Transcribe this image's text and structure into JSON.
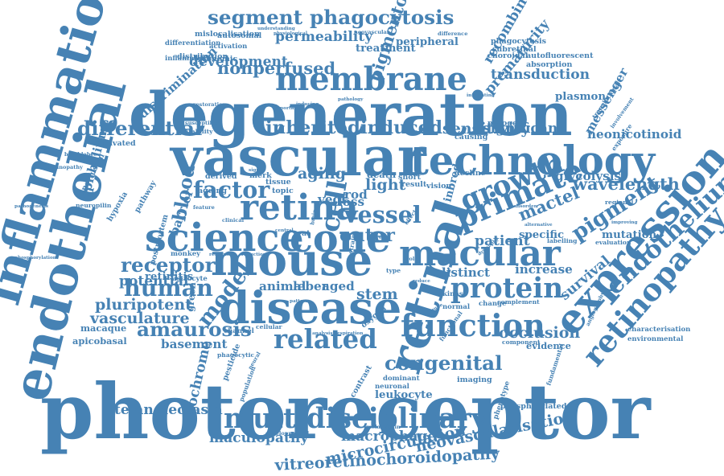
{
  "cloud": {
    "color": "#4682b4",
    "words": [
      {
        "text": "photoreceptor",
        "weight": 100
      },
      {
        "text": "degeneration",
        "weight": 78
      },
      {
        "text": "vascular",
        "weight": 70
      },
      {
        "text": "endothelial",
        "weight": 68
      },
      {
        "text": "inflammation",
        "weight": 62
      },
      {
        "text": "retinal",
        "weight": 62
      },
      {
        "text": "mouse",
        "weight": 58
      },
      {
        "text": "disease",
        "weight": 58
      },
      {
        "text": "technology",
        "weight": 52
      },
      {
        "text": "expression",
        "weight": 52
      },
      {
        "text": "science",
        "weight": 50
      },
      {
        "text": "cone",
        "weight": 50
      },
      {
        "text": "retina",
        "weight": 46
      },
      {
        "text": "macular",
        "weight": 46
      },
      {
        "text": "membrane",
        "weight": 42
      },
      {
        "text": "primate",
        "weight": 40
      },
      {
        "text": "function",
        "weight": 40
      },
      {
        "text": "retinopathy",
        "weight": 40
      },
      {
        "text": "multidisciplinary",
        "weight": 36
      },
      {
        "text": "protein",
        "weight": 36
      },
      {
        "text": "growth",
        "weight": 36
      },
      {
        "text": "cell",
        "weight": 34
      },
      {
        "text": "related",
        "weight": 34
      },
      {
        "text": "endothelium",
        "weight": 32
      },
      {
        "text": "vessel",
        "weight": 30
      },
      {
        "text": "human",
        "weight": 30
      },
      {
        "text": "factor",
        "weight": 30
      },
      {
        "text": "model",
        "weight": 28
      },
      {
        "text": "pigment",
        "weight": 28
      },
      {
        "text": "congenital",
        "weight": 26
      },
      {
        "text": "receptor",
        "weight": 26
      },
      {
        "text": "differential",
        "weight": 26
      },
      {
        "text": "amaurosis",
        "weight": 26
      },
      {
        "text": "segment",
        "weight": 26
      },
      {
        "text": "phagocytosis",
        "weight": 26
      },
      {
        "text": "inherited",
        "weight": 24
      },
      {
        "text": "induced",
        "weight": 24
      },
      {
        "text": "outer",
        "weight": 24
      },
      {
        "text": "blood",
        "weight": 24
      },
      {
        "text": "wavelength",
        "weight": 22
      },
      {
        "text": "nonperfused",
        "weight": 22
      },
      {
        "text": "pigmentosa",
        "weight": 22
      },
      {
        "text": "mactel",
        "weight": 22
      },
      {
        "text": "aging",
        "weight": 20
      },
      {
        "text": "light",
        "weight": 20
      },
      {
        "text": "sensitivity",
        "weight": 20
      },
      {
        "text": "stem",
        "weight": 20
      },
      {
        "text": "occlusion",
        "weight": 20
      },
      {
        "text": "pluripotent",
        "weight": 20
      },
      {
        "text": "vasculature",
        "weight": 20
      },
      {
        "text": "microcirculation",
        "weight": 20
      },
      {
        "text": "neovascularisation",
        "weight": 20
      },
      {
        "text": "vitreoretinochoroidopathy",
        "weight": 20
      },
      {
        "text": "macrophage",
        "weight": 18
      },
      {
        "text": "maculopathy",
        "weight": 18
      },
      {
        "text": "telangiectasia",
        "weight": 18
      },
      {
        "text": "cytochrome",
        "weight": 18
      },
      {
        "text": "potential",
        "weight": 18
      },
      {
        "text": "development",
        "weight": 18
      },
      {
        "text": "permeability",
        "weight": 18
      },
      {
        "text": "significant",
        "weight": 18
      },
      {
        "text": "prematurity",
        "weight": 18
      },
      {
        "text": "transduction",
        "weight": 18
      },
      {
        "text": "recombinase",
        "weight": 18
      },
      {
        "text": "patient",
        "weight": 18
      },
      {
        "text": "survival",
        "weight": 18
      },
      {
        "text": "glycolysis",
        "weight": 16
      },
      {
        "text": "neonicotinoid",
        "weight": 16
      },
      {
        "text": "messenger",
        "weight": 16
      },
      {
        "text": "distinct",
        "weight": 16
      },
      {
        "text": "increase",
        "weight": 16
      },
      {
        "text": "basement",
        "weight": 16
      },
      {
        "text": "barrier",
        "weight": 16
      },
      {
        "text": "epithelium",
        "weight": 16
      },
      {
        "text": "discrimination",
        "weight": 16
      },
      {
        "text": "leber",
        "weight": 16
      },
      {
        "text": "aged",
        "weight": 16
      },
      {
        "text": "animal",
        "weight": 16
      },
      {
        "text": "loss",
        "weight": 16
      },
      {
        "text": "rod",
        "weight": 16
      },
      {
        "text": "vegf",
        "weight": 16
      },
      {
        "text": "mutation",
        "weight": 14
      },
      {
        "text": "leukocyte",
        "weight": 14
      },
      {
        "text": "inbred",
        "weight": 14
      },
      {
        "text": "treatment",
        "weight": 14
      },
      {
        "text": "peripheral",
        "weight": 14
      },
      {
        "text": "plasmon",
        "weight": 14
      },
      {
        "text": "specific",
        "weight": 14
      },
      {
        "text": "retinitis",
        "weight": 14
      },
      {
        "text": "macaque",
        "weight": 12
      },
      {
        "text": "apicobasal",
        "weight": 12
      },
      {
        "text": "evidence",
        "weight": 12
      },
      {
        "text": "death",
        "weight": 12
      },
      {
        "text": "green",
        "weight": 12
      },
      {
        "text": "autofluorescent",
        "weight": 10
      },
      {
        "text": "phagocytosis",
        "weight": 10
      },
      {
        "text": "subretinal",
        "weight": 10
      },
      {
        "text": "choroidal",
        "weight": 10
      },
      {
        "text": "absorption",
        "weight": 10
      },
      {
        "text": "mitogen",
        "weight": 10
      },
      {
        "text": "causing",
        "weight": 10
      },
      {
        "text": "decline",
        "weight": 10
      },
      {
        "text": "short",
        "weight": 10
      },
      {
        "text": "result",
        "weight": 10
      },
      {
        "text": "vision",
        "weight": 10
      },
      {
        "text": "derived",
        "weight": 10
      },
      {
        "text": "ageing",
        "weight": 10
      },
      {
        "text": "topic",
        "weight": 10
      },
      {
        "text": "tissue",
        "weight": 10
      },
      {
        "text": "merk",
        "weight": 10
      },
      {
        "text": "distribution",
        "weight": 10
      },
      {
        "text": "ischemic",
        "weight": 10
      },
      {
        "text": "mislocalisation",
        "weight": 10
      },
      {
        "text": "autosomal",
        "weight": 10
      },
      {
        "text": "activation",
        "weight": 9
      },
      {
        "text": "inflammatory",
        "weight": 9
      },
      {
        "text": "differentiation",
        "weight": 9
      },
      {
        "text": "activated",
        "weight": 10
      },
      {
        "text": "perfusion",
        "weight": 10
      },
      {
        "text": "hypoxia",
        "weight": 10
      },
      {
        "text": "pathway",
        "weight": 10
      },
      {
        "text": "postmortem",
        "weight": 10
      },
      {
        "text": "monkey",
        "weight": 9
      },
      {
        "text": "astrocyte",
        "weight": 9
      },
      {
        "text": "channel",
        "weight": 9
      },
      {
        "text": "cellular",
        "weight": 8
      },
      {
        "text": "pesticide",
        "weight": 10
      },
      {
        "text": "phagocytic",
        "weight": 8
      },
      {
        "text": "contrast",
        "weight": 10
      },
      {
        "text": "oxygen",
        "weight": 10
      },
      {
        "text": "dominant",
        "weight": 9
      },
      {
        "text": "neuronal",
        "weight": 9
      },
      {
        "text": "imaging",
        "weight": 10
      },
      {
        "text": "phosphorylated",
        "weight": 10
      },
      {
        "text": "characterisation",
        "weight": 9
      },
      {
        "text": "environmental",
        "weight": 9
      },
      {
        "text": "complement",
        "weight": 8
      },
      {
        "text": "component",
        "weight": 8
      },
      {
        "text": "kinase",
        "weight": 9
      },
      {
        "text": "normal",
        "weight": 9
      },
      {
        "text": "change",
        "weight": 9
      },
      {
        "text": "regional",
        "weight": 8
      },
      {
        "text": "evaluation",
        "weight": 8
      },
      {
        "text": "labelling",
        "weight": 8
      },
      {
        "text": "stability",
        "weight": 8
      },
      {
        "text": "restoration",
        "weight": 7
      },
      {
        "text": "susceptible",
        "weight": 7
      },
      {
        "text": "retinopathy",
        "weight": 7
      },
      {
        "text": "bumblebee",
        "weight": 7
      },
      {
        "text": "neuropilin",
        "weight": 8
      },
      {
        "text": "pathogenesis",
        "weight": 6
      },
      {
        "text": "phosphorylation",
        "weight": 6
      },
      {
        "text": "developmental",
        "weight": 7
      },
      {
        "text": "melanopsin",
        "weight": 7
      },
      {
        "text": "fundamental",
        "weight": 8
      },
      {
        "text": "phenotype",
        "weight": 9
      },
      {
        "text": "translational",
        "weight": 8
      },
      {
        "text": "involvement",
        "weight": 7
      },
      {
        "text": "exposure",
        "weight": 8
      },
      {
        "text": "angiography",
        "weight": 7
      },
      {
        "text": "feature",
        "weight": 7
      },
      {
        "text": "clinical",
        "weight": 7
      },
      {
        "text": "understanding",
        "weight": 6
      },
      {
        "text": "physiological",
        "weight": 6
      },
      {
        "text": "neovascular",
        "weight": 7
      },
      {
        "text": "difference",
        "weight": 7
      },
      {
        "text": "reduce",
        "weight": 6
      },
      {
        "text": "rat",
        "weight": 10
      },
      {
        "text": "type",
        "weight": 8
      },
      {
        "text": "functional",
        "weight": 8
      },
      {
        "text": "pathology",
        "weight": 6
      },
      {
        "text": "infiltrating",
        "weight": 6
      },
      {
        "text": "disorder",
        "weight": 6
      },
      {
        "text": "alternative",
        "weight": 6
      },
      {
        "text": "improving",
        "weight": 6
      },
      {
        "text": "strain",
        "weight": 8
      },
      {
        "text": "signal",
        "weight": 6
      },
      {
        "text": "central",
        "weight": 6
      },
      {
        "text": "response",
        "weight": 6
      },
      {
        "text": "reduction",
        "weight": 6
      },
      {
        "text": "analysis",
        "weight": 6
      },
      {
        "text": "respiration",
        "weight": 6
      },
      {
        "text": "population",
        "weight": 8
      },
      {
        "text": "neural",
        "weight": 7
      },
      {
        "text": "role",
        "weight": 7
      },
      {
        "text": "effect",
        "weight": 7
      },
      {
        "text": "brain",
        "weight": 7
      },
      {
        "text": "novel",
        "weight": 7
      },
      {
        "text": "immune",
        "weight": 6
      },
      {
        "text": "inducing",
        "weight": 6
      },
      {
        "text": "important",
        "weight": 6
      },
      {
        "text": "dystrophy",
        "weight": 6
      },
      {
        "text": "pattern",
        "weight": 6
      }
    ]
  }
}
